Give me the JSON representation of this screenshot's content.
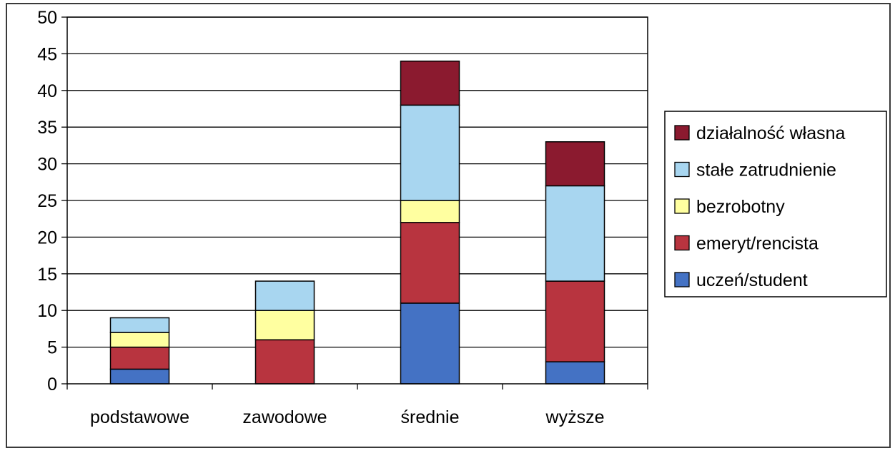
{
  "chart_data": {
    "type": "bar",
    "stacked": true,
    "categories": [
      "podstawowe",
      "zawodowe",
      "średnie",
      "wyższe"
    ],
    "series": [
      {
        "name": "uczeń/student",
        "color": "#4472C4",
        "values": [
          2,
          0,
          11,
          3
        ]
      },
      {
        "name": "emeryt/rencista",
        "color": "#B8343F",
        "values": [
          3,
          6,
          11,
          11
        ]
      },
      {
        "name": "bezrobotny",
        "color": "#FFFFA0",
        "values": [
          2,
          4,
          3,
          0
        ]
      },
      {
        "name": "stałe zatrudnienie",
        "color": "#A8D6F0",
        "values": [
          2,
          4,
          13,
          13
        ]
      },
      {
        "name": "działalność własna",
        "color": "#8B1A2F",
        "values": [
          0,
          0,
          6,
          6
        ]
      }
    ],
    "ylim": [
      0,
      50
    ],
    "yticks": [
      0,
      5,
      10,
      15,
      20,
      25,
      30,
      35,
      40,
      45,
      50
    ],
    "ytick_labels": [
      "0",
      "5",
      "10",
      "15",
      "20",
      "25",
      "30",
      "35",
      "40",
      "45",
      "50"
    ],
    "grid": true,
    "legend_position": "right",
    "legend_order": [
      "działalność własna",
      "stałe zatrudnienie",
      "bezrobotny",
      "emeryt/rencista",
      "uczeń/student"
    ],
    "title": "",
    "xlabel": "",
    "ylabel": ""
  }
}
